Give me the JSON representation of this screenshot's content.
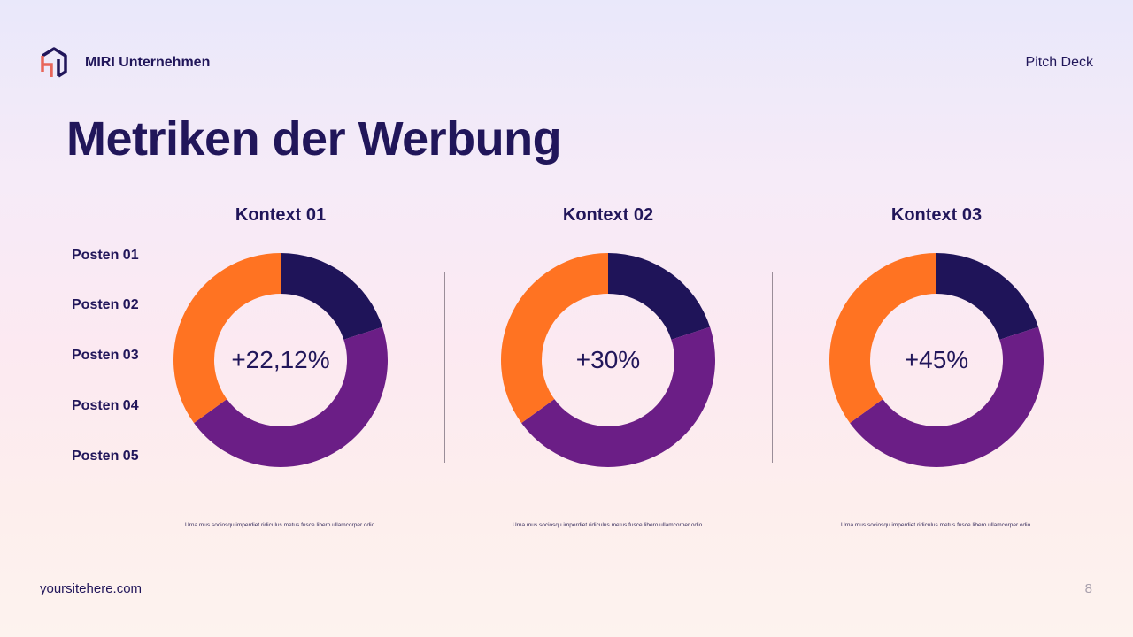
{
  "header": {
    "brand": "MIRI Unternehmen",
    "label": "Pitch Deck",
    "logo_icon": "hexagon-hw-logo"
  },
  "title": "Metriken der Werbung",
  "legend_items": [
    "Posten 01",
    "Posten 02",
    "Posten 03",
    "Posten 04",
    "Posten 05"
  ],
  "colors": {
    "navy": "#1f1459",
    "purple": "#6b1e86",
    "orange": "#ff7322"
  },
  "chart_data": [
    {
      "type": "pie",
      "donut": true,
      "title": "Kontext 01",
      "center_label": "+22,12%",
      "values": [
        20,
        45,
        35
      ],
      "colors": [
        "#1f1459",
        "#6b1e86",
        "#ff7322"
      ],
      "caption": "Urna mus sociosqu imperdiet ridiculus metus fusce libero ullamcorper odio."
    },
    {
      "type": "pie",
      "donut": true,
      "title": "Kontext 02",
      "center_label": "+30%",
      "values": [
        20,
        45,
        35
      ],
      "colors": [
        "#1f1459",
        "#6b1e86",
        "#ff7322"
      ],
      "caption": "Urna mus sociosqu imperdiet ridiculus metus fusce libero ullamcorper odio."
    },
    {
      "type": "pie",
      "donut": true,
      "title": "Kontext 03",
      "center_label": "+45%",
      "values": [
        20,
        45,
        35
      ],
      "colors": [
        "#1f1459",
        "#6b1e86",
        "#ff7322"
      ],
      "caption": "Urna mus sociosqu imperdiet ridiculus metus fusce libero ullamcorper odio."
    }
  ],
  "footer": {
    "site": "yoursitehere.com",
    "page": "8"
  }
}
